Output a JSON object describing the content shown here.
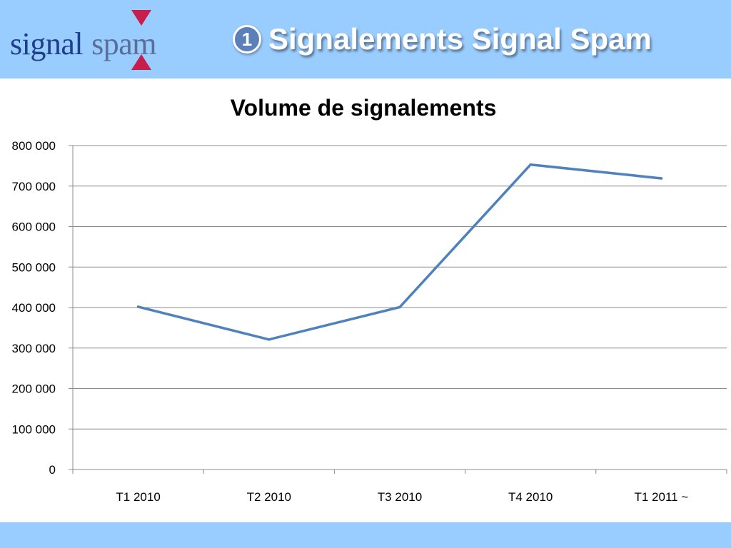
{
  "logo": {
    "word1": "signal",
    "word2": "spam"
  },
  "slide": {
    "number": "1",
    "title": "Signalements Signal Spam"
  },
  "colors": {
    "header_bg": "#99ccff",
    "line": "#4f81bd",
    "logo_accent": "#c81e4c"
  },
  "chart_data": {
    "type": "line",
    "title": "Volume de signalements",
    "xlabel": "",
    "ylabel": "",
    "categories": [
      "T1 2010",
      "T2 2010",
      "T3 2010",
      "T4 2010",
      "T1 2011 ~"
    ],
    "series": [
      {
        "values": [
          402000,
          321000,
          401000,
          753000,
          719000
        ]
      }
    ],
    "ylim": [
      0,
      800000
    ],
    "yticks": [
      0,
      100000,
      200000,
      300000,
      400000,
      500000,
      600000,
      700000,
      800000
    ],
    "ytick_labels": [
      "0",
      "100 000",
      "200 000",
      "300 000",
      "400 000",
      "500 000",
      "600 000",
      "700 000",
      "800 000"
    ],
    "grid": true,
    "legend": "none"
  }
}
